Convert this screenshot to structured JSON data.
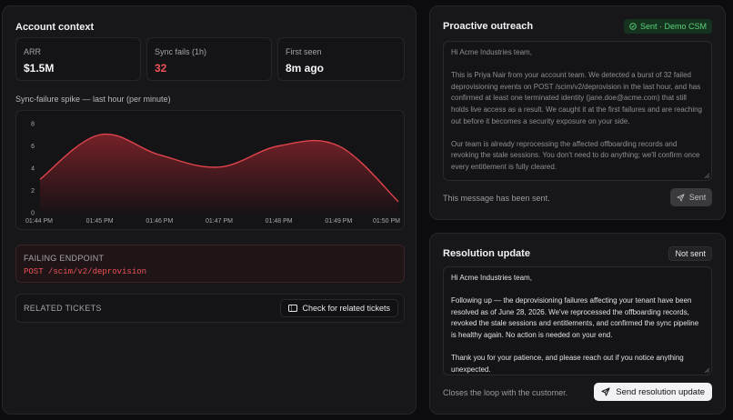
{
  "account_context": {
    "title": "Account context",
    "stats": [
      {
        "label": "ARR",
        "value": "$1.5M"
      },
      {
        "label": "Sync fails (1h)",
        "value": "32"
      },
      {
        "label": "First seen",
        "value": "8m ago"
      }
    ],
    "chart_title": "Sync-failure spike — last hour (per minute)",
    "failing_endpoint": {
      "label": "FAILING ENDPOINT",
      "path": "POST /scim/v2/deprovision"
    },
    "related_tickets": {
      "label": "RELATED TICKETS",
      "button_label": "Check for related tickets"
    }
  },
  "chart_data": {
    "type": "area",
    "title": "Sync-failure spike — last hour (per minute)",
    "xlabel": "",
    "ylabel": "",
    "x": [
      "01:44 PM",
      "01:45 PM",
      "01:46 PM",
      "01:47 PM",
      "01:48 PM",
      "01:49 PM",
      "01:50 PM"
    ],
    "values": [
      3,
      7,
      5.2,
      4.1,
      6,
      6,
      1
    ],
    "ylim": [
      0,
      8
    ],
    "yticks": [
      "0",
      "2",
      "4",
      "6",
      "8"
    ],
    "grid": false,
    "colors": {
      "line": "#e0434b",
      "fill_top": "#7a2229",
      "fill_bottom": "#1a1215"
    }
  },
  "outreach": {
    "title": "Proactive outreach",
    "badge": "Sent · Demo CSM",
    "message": [
      "Hi Acme Industries team,",
      "This is Priya Nair from your account team. We detected a burst of 32 failed deprovisioning events on POST /scim/v2/deprovision in the last hour, and has confirmed at least one terminated identity (jane.doe@acme.com) that still holds live access as a result. We caught it at the first failures and are reaching out before it becomes a security exposure on your side.",
      "Our team is already reprocessing the affected offboarding records and revoking the stale sessions. You don't need to do anything; we'll confirm once every entitlement is fully cleared."
    ],
    "footnote": "This message has been sent.",
    "button_label": "Sent"
  },
  "resolution": {
    "title": "Resolution update",
    "badge": "Not sent",
    "message": [
      "Hi Acme Industries team,",
      "Following up — the deprovisioning failures affecting your tenant have been resolved as of June 28, 2026. We've reprocessed the offboarding records, revoked the stale sessions and entitlements, and confirmed the sync pipeline is healthy again. No action is needed on your end.",
      "Thank you for your patience, and please reach out if you notice anything unexpected."
    ],
    "footnote": "Closes the loop with the customer.",
    "button_label": "Send resolution update"
  },
  "colors": {
    "accent_danger": "#f0525a",
    "success": "#5ad07a",
    "background": "#0c0c0e",
    "panel": "#17171a"
  },
  "icons": {
    "sent_badge": "check-circle-icon",
    "send": "paper-plane-icon",
    "tickets": "ticket-icon"
  }
}
